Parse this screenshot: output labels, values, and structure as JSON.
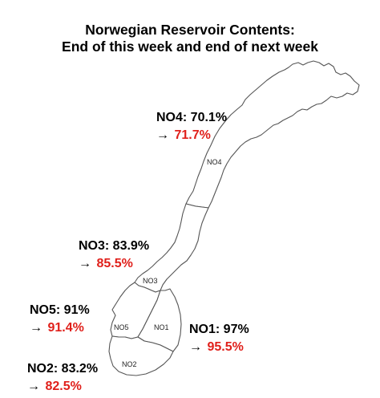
{
  "title": {
    "line1": "Norwegian Reservoir Contents:",
    "line2": "End of this week and end of next week"
  },
  "arrow_glyph": "→",
  "colors": {
    "next_week_value": "#e0201b",
    "map_outline": "#555555",
    "map_fill": "#ffffff",
    "text": "#000000"
  },
  "regions": [
    {
      "code": "NO4",
      "this_week_label": "NO4: 70.1%",
      "next_week": "71.7%",
      "this_week_pct": 70.1,
      "next_week_pct": 71.7
    },
    {
      "code": "NO3",
      "this_week_label": "NO3: 83.9%",
      "next_week": "85.5%",
      "this_week_pct": 83.9,
      "next_week_pct": 85.5
    },
    {
      "code": "NO5",
      "this_week_label": "NO5: 91%",
      "next_week": "91.4%",
      "this_week_pct": 91,
      "next_week_pct": 91.4
    },
    {
      "code": "NO1",
      "this_week_label": "NO1: 97%",
      "next_week": "95.5%",
      "this_week_pct": 97,
      "next_week_pct": 95.5
    },
    {
      "code": "NO2",
      "this_week_label": "NO2: 83.2%",
      "next_week": "82.5%",
      "this_week_pct": 83.2,
      "next_week_pct": 82.5
    }
  ]
}
